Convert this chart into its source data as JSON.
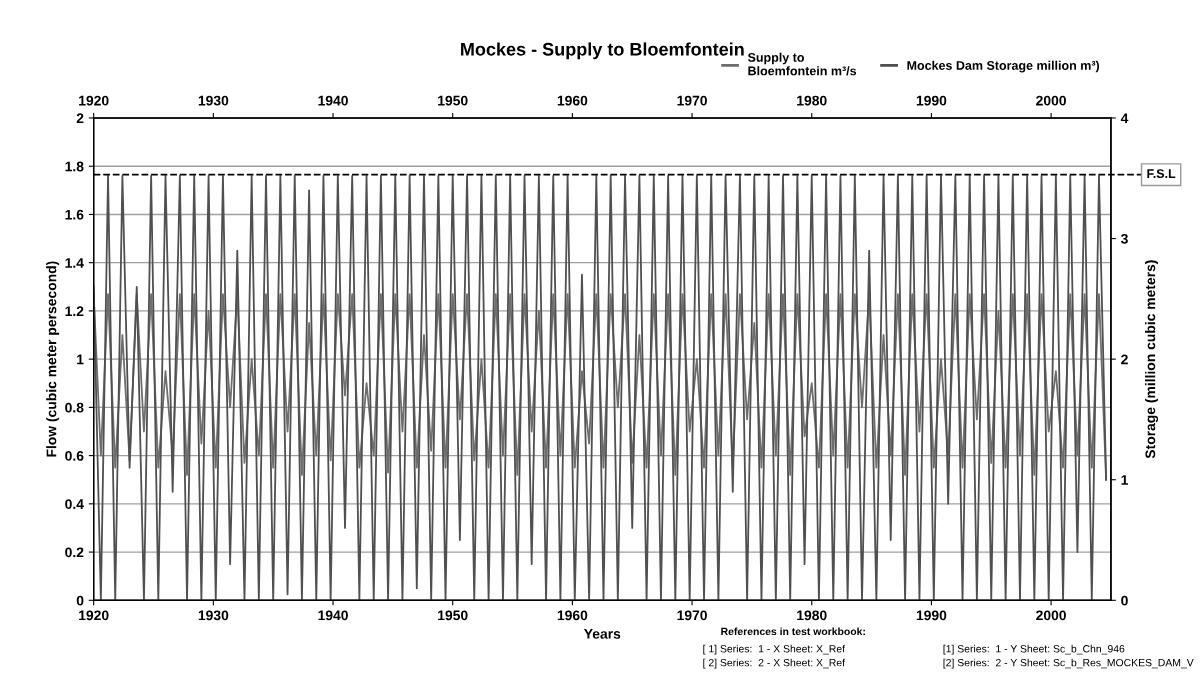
{
  "chart_data": {
    "type": "line",
    "title": "Mockes - Supply to Bloemfontein",
    "xlabel": "Years",
    "ylabel": "Flow (cubic meter persecond)",
    "y2label": "Storage (million cubic meters)",
    "x": [
      1920.0,
      1920.6,
      1921.2,
      1921.8,
      1922.4,
      1923.0,
      1923.6,
      1924.2,
      1924.8,
      1925.4,
      1926.0,
      1926.6,
      1927.2,
      1927.8,
      1928.4,
      1929.0,
      1929.6,
      1930.2,
      1930.8,
      1931.4,
      1932.0,
      1932.6,
      1933.2,
      1933.8,
      1934.4,
      1935.0,
      1935.6,
      1936.2,
      1936.8,
      1937.4,
      1938.0,
      1938.6,
      1939.2,
      1939.8,
      1940.4,
      1941.0,
      1941.6,
      1942.2,
      1942.8,
      1943.4,
      1944.0,
      1944.6,
      1945.2,
      1945.8,
      1946.4,
      1947.0,
      1947.6,
      1948.2,
      1948.8,
      1949.4,
      1950.0,
      1950.6,
      1951.2,
      1951.8,
      1952.4,
      1953.0,
      1953.6,
      1954.2,
      1954.8,
      1955.4,
      1956.0,
      1956.6,
      1957.2,
      1957.8,
      1958.4,
      1959.0,
      1959.6,
      1960.2,
      1960.8,
      1961.4,
      1962.0,
      1962.6,
      1963.2,
      1963.8,
      1964.4,
      1965.0,
      1965.6,
      1966.2,
      1966.8,
      1967.4,
      1968.0,
      1968.6,
      1969.2,
      1969.8,
      1970.4,
      1971.0,
      1971.6,
      1972.2,
      1972.8,
      1973.4,
      1974.0,
      1974.6,
      1975.2,
      1975.8,
      1976.4,
      1977.0,
      1977.6,
      1978.2,
      1978.8,
      1979.4,
      1980.0,
      1980.6,
      1981.2,
      1981.8,
      1982.4,
      1983.0,
      1983.6,
      1984.2,
      1984.8,
      1985.4,
      1986.0,
      1986.6,
      1987.2,
      1987.8,
      1988.4,
      1989.0,
      1989.6,
      1990.2,
      1990.8,
      1991.4,
      1992.0,
      1992.6,
      1993.2,
      1993.8,
      1994.4,
      1995.0,
      1995.6,
      1996.2,
      1996.8,
      1997.4,
      1998.0,
      1998.6,
      1999.2,
      1999.8,
      2000.4,
      2001.0,
      2001.6,
      2002.2,
      2002.8,
      2003.4,
      2004.0,
      2004.6
    ],
    "series": [
      {
        "name": "Supply to\nBloemfontein m³/s",
        "color": "#6e6e6e",
        "values": [
          1.27,
          0.6,
          1.27,
          0.55,
          1.1,
          0.58,
          1.27,
          0.7,
          1.27,
          0.55,
          0.95,
          0.6,
          1.27,
          0.52,
          1.27,
          0.65,
          1.2,
          0.55,
          1.27,
          0.8,
          1.27,
          0.57,
          1.0,
          0.6,
          1.27,
          0.55,
          1.27,
          0.7,
          1.27,
          0.52,
          1.15,
          0.6,
          1.27,
          0.58,
          1.27,
          0.85,
          1.27,
          0.55,
          0.9,
          0.6,
          1.27,
          0.53,
          1.27,
          0.7,
          1.27,
          0.55,
          1.1,
          0.62,
          1.27,
          0.55,
          1.27,
          0.75,
          1.27,
          0.58,
          1.0,
          0.55,
          1.27,
          0.6,
          1.27,
          0.52,
          1.27,
          0.7,
          1.2,
          0.55,
          1.27,
          0.6,
          1.27,
          0.55,
          0.95,
          0.65,
          1.27,
          0.55,
          1.27,
          0.8,
          1.27,
          0.57,
          1.1,
          0.55,
          1.27,
          0.6,
          1.27,
          0.52,
          1.27,
          0.7,
          1.0,
          0.55,
          1.27,
          0.6,
          1.27,
          0.55,
          1.27,
          0.75,
          1.15,
          0.55,
          1.27,
          0.6,
          1.27,
          0.52,
          1.27,
          0.68,
          0.9,
          0.55,
          1.27,
          0.6,
          1.27,
          0.55,
          1.27,
          0.8,
          1.27,
          0.55,
          1.1,
          0.6,
          1.27,
          0.52,
          1.27,
          0.7,
          1.27,
          0.55,
          1.0,
          0.6,
          1.27,
          0.55,
          1.27,
          0.75,
          1.27,
          0.57,
          1.2,
          0.55,
          1.27,
          0.6,
          1.27,
          0.52,
          1.27,
          0.7,
          0.95,
          0.55,
          1.27,
          0.6,
          1.27,
          0.55,
          1.27,
          0.5
        ]
      },
      {
        "name": "Mockes Dam Storage million m³)",
        "color": "#505050",
        "axis": "y2",
        "values": [
          2.6,
          0,
          3.52,
          0,
          3.52,
          1.1,
          2.6,
          0,
          3.52,
          0,
          3.52,
          0.9,
          3.52,
          0,
          3.52,
          0,
          3.52,
          0,
          3.52,
          0.3,
          2.9,
          0,
          3.52,
          0,
          3.52,
          0,
          3.52,
          0.05,
          3.52,
          0,
          3.4,
          0,
          3.52,
          0,
          3.52,
          0.6,
          3.52,
          0,
          3.52,
          0,
          3.52,
          0,
          3.52,
          0,
          3.52,
          0.1,
          3.52,
          0,
          3.52,
          0,
          3.52,
          0.5,
          3.52,
          0,
          3.52,
          0,
          3.52,
          0,
          3.52,
          0,
          3.52,
          0.3,
          3.52,
          0,
          3.52,
          0,
          3.52,
          0,
          2.7,
          0,
          3.52,
          0,
          3.52,
          0,
          3.52,
          0.6,
          3.52,
          0,
          3.52,
          0,
          3.52,
          0,
          3.52,
          0,
          3.52,
          0,
          3.52,
          0,
          3.52,
          0.9,
          3.52,
          0,
          3.52,
          0,
          3.52,
          0,
          3.52,
          0,
          3.52,
          0.3,
          3.52,
          0,
          3.52,
          0,
          3.52,
          0,
          3.52,
          0,
          2.9,
          0,
          3.52,
          0.5,
          3.52,
          0,
          3.52,
          0,
          3.52,
          0,
          3.52,
          0.8,
          3.52,
          0,
          3.52,
          0,
          3.52,
          0,
          3.52,
          0,
          3.52,
          0,
          3.52,
          0,
          3.52,
          0,
          3.52,
          0,
          3.52,
          0.4,
          3.52,
          0,
          3.52,
          1.0
        ]
      }
    ],
    "xlim": [
      1920,
      2005
    ],
    "xticks": [
      1920,
      1930,
      1940,
      1950,
      1960,
      1970,
      1980,
      1990,
      2000
    ],
    "x2lim": [
      1920,
      2005
    ],
    "x2ticks": [
      1920,
      1930,
      1940,
      1950,
      1960,
      1970,
      1980,
      1990,
      2000
    ],
    "ylim": [
      0,
      2
    ],
    "yticks": [
      0,
      0.2,
      0.4,
      0.6,
      0.8,
      1,
      1.2,
      1.4,
      1.6,
      1.8,
      2
    ],
    "y2lim": [
      0,
      4
    ],
    "y2ticks": [
      0,
      1,
      2,
      3,
      4
    ],
    "ref_lines": [
      {
        "axis": "y2",
        "value": 3.53,
        "label": "F.S.L",
        "color": "#000000",
        "line_style": "dashed"
      }
    ],
    "grid": "y",
    "legend": "top right",
    "annotations": [
      "References in test workbook:",
      "[ 1] Series:  1 - X Sheet: X_Ref",
      "[ 2] Series:  2 - X Sheet: X_Ref",
      "[1] Series:  1 - Y Sheet: Sc_b_Chn_946",
      "[2] Series:  2 - Y Sheet: Sc_b_Res_MOCKES_DAM_V"
    ]
  }
}
